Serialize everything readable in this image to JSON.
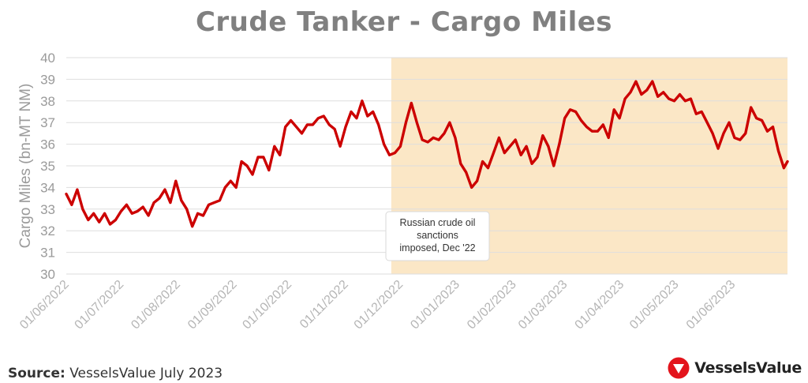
{
  "chart_data": {
    "type": "line",
    "title": "Crude Tanker - Cargo Miles",
    "xlabel": "",
    "ylabel": "Cargo Miles (bn-MT NM)",
    "ylim": [
      30,
      40
    ],
    "yticks": [
      30,
      31,
      32,
      33,
      34,
      35,
      36,
      37,
      38,
      39,
      40
    ],
    "xlim": [
      "2022-06-01",
      "2023-07-01"
    ],
    "xticks": [
      {
        "date": "2022-06-01",
        "label": "01/06/2022"
      },
      {
        "date": "2022-07-01",
        "label": "01/07/2022"
      },
      {
        "date": "2022-08-01",
        "label": "01/08/2022"
      },
      {
        "date": "2022-09-01",
        "label": "01/09/2022"
      },
      {
        "date": "2022-10-01",
        "label": "01/10/2022"
      },
      {
        "date": "2022-11-01",
        "label": "01/11/2022"
      },
      {
        "date": "2022-12-01",
        "label": "01/12/2022"
      },
      {
        "date": "2023-01-01",
        "label": "01/01/2023"
      },
      {
        "date": "2023-02-01",
        "label": "01/02/2023"
      },
      {
        "date": "2023-03-01",
        "label": "01/03/2023"
      },
      {
        "date": "2023-04-01",
        "label": "01/04/2023"
      },
      {
        "date": "2023-05-01",
        "label": "01/05/2023"
      },
      {
        "date": "2023-06-01",
        "label": "01/06/2023"
      }
    ],
    "grid": true,
    "series_color": "#cc0000",
    "shaded_region": {
      "start": "2022-11-26",
      "end": "2023-07-01",
      "color": "#fbe7c6"
    },
    "annotation": "Russian crude oil sanctions imposed, Dec '22",
    "series": [
      {
        "x": [
          "2022-06-01",
          "2022-06-04",
          "2022-06-07",
          "2022-06-10",
          "2022-06-13",
          "2022-06-16",
          "2022-06-19",
          "2022-06-22",
          "2022-06-25",
          "2022-06-28",
          "2022-07-01",
          "2022-07-04",
          "2022-07-07",
          "2022-07-10",
          "2022-07-13",
          "2022-07-16",
          "2022-07-19",
          "2022-07-22",
          "2022-07-25",
          "2022-07-28",
          "2022-07-31",
          "2022-08-03",
          "2022-08-06",
          "2022-08-09",
          "2022-08-12",
          "2022-08-15",
          "2022-08-18",
          "2022-08-21",
          "2022-08-24",
          "2022-08-27",
          "2022-08-30",
          "2022-09-02",
          "2022-09-05",
          "2022-09-08",
          "2022-09-11",
          "2022-09-14",
          "2022-09-17",
          "2022-09-20",
          "2022-09-23",
          "2022-09-26",
          "2022-09-29",
          "2022-10-02",
          "2022-10-05",
          "2022-10-08",
          "2022-10-11",
          "2022-10-14",
          "2022-10-17",
          "2022-10-20",
          "2022-10-23",
          "2022-10-26",
          "2022-10-29",
          "2022-11-01",
          "2022-11-04",
          "2022-11-07",
          "2022-11-10",
          "2022-11-13",
          "2022-11-16",
          "2022-11-19",
          "2022-11-22",
          "2022-11-25",
          "2022-11-28",
          "2022-12-01",
          "2022-12-04",
          "2022-12-07",
          "2022-12-10",
          "2022-12-13",
          "2022-12-16",
          "2022-12-19",
          "2022-12-22",
          "2022-12-25",
          "2022-12-28",
          "2022-12-31",
          "2023-01-03",
          "2023-01-06",
          "2023-01-09",
          "2023-01-12",
          "2023-01-15",
          "2023-01-18",
          "2023-01-21",
          "2023-01-24",
          "2023-01-27",
          "2023-01-30",
          "2023-02-02",
          "2023-02-05",
          "2023-02-08",
          "2023-02-11",
          "2023-02-14",
          "2023-02-17",
          "2023-02-20",
          "2023-02-23",
          "2023-02-26",
          "2023-03-01",
          "2023-03-04",
          "2023-03-07",
          "2023-03-10",
          "2023-03-13",
          "2023-03-16",
          "2023-03-19",
          "2023-03-22",
          "2023-03-25",
          "2023-03-28",
          "2023-03-31",
          "2023-04-03",
          "2023-04-06",
          "2023-04-09",
          "2023-04-12",
          "2023-04-15",
          "2023-04-18",
          "2023-04-21",
          "2023-04-24",
          "2023-04-27",
          "2023-04-30",
          "2023-05-03",
          "2023-05-06",
          "2023-05-09",
          "2023-05-12",
          "2023-05-15",
          "2023-05-18",
          "2023-05-21",
          "2023-05-24",
          "2023-05-27",
          "2023-05-30",
          "2023-06-02",
          "2023-06-05",
          "2023-06-08",
          "2023-06-11",
          "2023-06-14",
          "2023-06-17",
          "2023-06-20",
          "2023-06-23",
          "2023-06-26",
          "2023-06-29",
          "2023-07-01"
        ],
        "values": [
          33.7,
          33.2,
          33.9,
          33.0,
          32.5,
          32.8,
          32.4,
          32.8,
          32.3,
          32.5,
          32.9,
          33.2,
          32.8,
          32.9,
          33.1,
          32.7,
          33.3,
          33.5,
          33.9,
          33.3,
          34.3,
          33.4,
          33.0,
          32.2,
          32.8,
          32.7,
          33.2,
          33.3,
          33.4,
          34.0,
          34.3,
          34.0,
          35.2,
          35.0,
          34.6,
          35.4,
          35.4,
          34.8,
          35.9,
          35.5,
          36.8,
          37.1,
          36.8,
          36.5,
          36.9,
          36.9,
          37.2,
          37.3,
          36.9,
          36.7,
          35.9,
          36.8,
          37.5,
          37.2,
          38.0,
          37.3,
          37.5,
          36.9,
          36.0,
          35.5,
          35.6,
          35.9,
          37.0,
          37.9,
          37.0,
          36.2,
          36.1,
          36.3,
          36.2,
          36.5,
          37.0,
          36.3,
          35.1,
          34.7,
          34.0,
          34.3,
          35.2,
          34.9,
          35.6,
          36.3,
          35.6,
          35.9,
          36.2,
          35.5,
          35.9,
          35.1,
          35.4,
          36.4,
          35.9,
          35.0,
          36.0,
          37.2,
          37.6,
          37.5,
          37.1,
          36.8,
          36.6,
          36.6,
          36.9,
          36.3,
          37.6,
          37.2,
          38.1,
          38.4,
          38.9,
          38.3,
          38.5,
          38.9,
          38.2,
          38.4,
          38.1,
          38.0,
          38.3,
          38.0,
          38.1,
          37.4,
          37.5,
          37.0,
          36.5,
          35.8,
          36.5,
          37.0,
          36.3,
          36.2,
          36.5,
          37.7,
          37.2,
          37.1,
          36.6,
          36.8,
          35.7,
          34.9,
          35.2
        ]
      }
    ]
  },
  "source": {
    "label": "Source:",
    "text": " VesselsValue July 2023"
  },
  "brand": {
    "name": "VesselsValue",
    "color": "#e3141c"
  }
}
